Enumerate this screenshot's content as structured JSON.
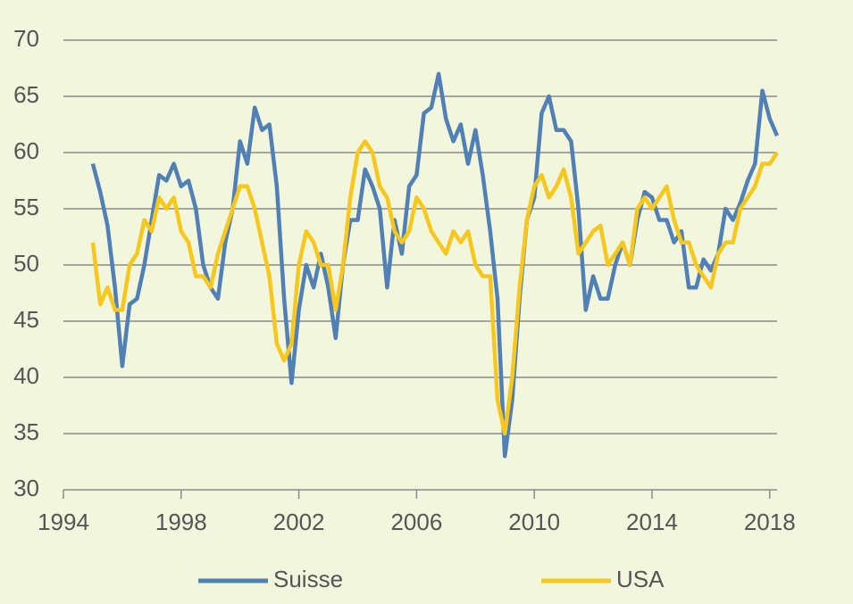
{
  "chart_data": {
    "type": "line",
    "x": [
      1995,
      1995.25,
      1995.5,
      1995.75,
      1996,
      1996.25,
      1996.5,
      1996.75,
      1997,
      1997.25,
      1997.5,
      1997.75,
      1998,
      1998.25,
      1998.5,
      1998.75,
      1999,
      1999.25,
      1999.5,
      1999.75,
      2000,
      2000.25,
      2000.5,
      2000.75,
      2001,
      2001.25,
      2001.5,
      2001.75,
      2002,
      2002.25,
      2002.5,
      2002.75,
      2003,
      2003.25,
      2003.5,
      2003.75,
      2004,
      2004.25,
      2004.5,
      2004.75,
      2005,
      2005.25,
      2005.5,
      2005.75,
      2006,
      2006.25,
      2006.5,
      2006.75,
      2007,
      2007.25,
      2007.5,
      2007.75,
      2008,
      2008.25,
      2008.5,
      2008.75,
      2009,
      2009.25,
      2009.5,
      2009.75,
      2010,
      2010.25,
      2010.5,
      2010.75,
      2011,
      2011.25,
      2011.5,
      2011.75,
      2012,
      2012.25,
      2012.5,
      2012.75,
      2013,
      2013.25,
      2013.5,
      2013.75,
      2014,
      2014.25,
      2014.5,
      2014.75,
      2015,
      2015.25,
      2015.5,
      2015.75,
      2016,
      2016.25,
      2016.5,
      2016.75,
      2017,
      2017.25,
      2017.5,
      2017.75,
      2018,
      2018.25
    ],
    "series": [
      {
        "name": "Suisse",
        "color": "#5080b6",
        "values": [
          59,
          56.5,
          53.5,
          48,
          41,
          46.5,
          47,
          50,
          54,
          58,
          57.5,
          59,
          57,
          57.5,
          55,
          50,
          48,
          47,
          52,
          55,
          61,
          59,
          64,
          62,
          62.5,
          57,
          47,
          39.5,
          46,
          50,
          48,
          51,
          48,
          43.5,
          50,
          54,
          54,
          58.5,
          57,
          55,
          48,
          54,
          51,
          57,
          58,
          63.5,
          64,
          67,
          63,
          61,
          62.5,
          59,
          62,
          58,
          53,
          47,
          33,
          38,
          47,
          54,
          56,
          63.5,
          65,
          62,
          62,
          61,
          55,
          46,
          49,
          47,
          47,
          50,
          52,
          50,
          54,
          56.5,
          56,
          54,
          54,
          52,
          53,
          48,
          48,
          50.5,
          49.5,
          51,
          55,
          54,
          55.5,
          57.5,
          59,
          65.5,
          63,
          61.5
        ]
      },
      {
        "name": "USA",
        "color": "#f8c71c",
        "values": [
          52,
          46.5,
          48,
          46,
          46,
          50,
          51,
          54,
          53,
          56,
          55,
          56,
          53,
          52,
          49,
          49,
          48,
          51,
          53,
          55,
          57,
          57,
          55,
          52,
          49,
          43,
          41.5,
          43,
          50,
          53,
          52,
          50,
          50,
          46,
          50,
          56,
          60,
          61,
          60,
          57,
          56,
          53,
          52,
          53,
          56,
          55,
          53,
          52,
          51,
          53,
          52,
          53,
          50,
          49,
          49,
          38,
          35,
          40,
          48,
          54,
          57,
          58,
          56,
          57,
          58.5,
          56,
          51,
          52,
          53,
          53.5,
          50,
          51,
          52,
          50,
          55,
          56,
          55,
          56,
          57,
          54,
          52,
          52,
          50,
          49,
          48,
          51,
          52,
          52,
          55,
          56,
          57,
          59,
          59,
          60
        ]
      }
    ],
    "xlim": [
      1994,
      2018.25
    ],
    "xticks": [
      1994,
      1998,
      2002,
      2006,
      2010,
      2014,
      2018
    ],
    "ylim": [
      30,
      70
    ],
    "yticks": [
      30,
      35,
      40,
      45,
      50,
      55,
      60,
      65,
      70
    ],
    "grid": true
  }
}
